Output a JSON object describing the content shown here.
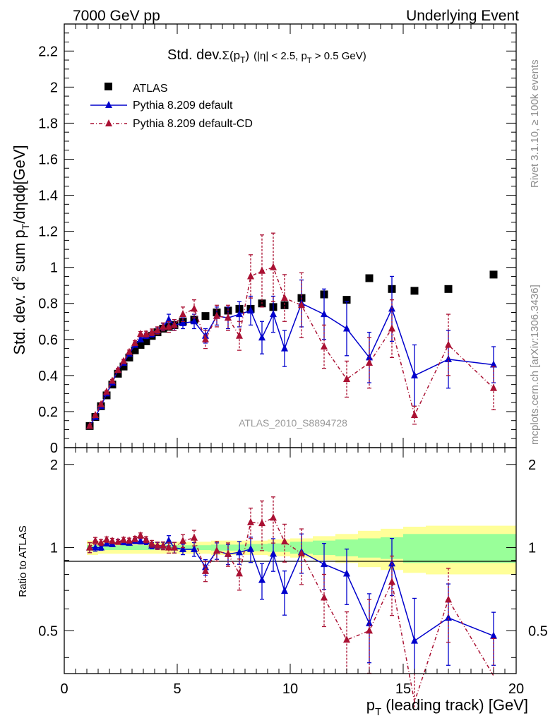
{
  "header": {
    "left": "7000 GeV pp",
    "right": "Underlying Event"
  },
  "side": {
    "rivet": "Rivet 3.1.10, ≥ 100k events",
    "mcplots": "mcplots.cern.ch [arXiv:1306.3436]"
  },
  "chart_data": {
    "type": "scatter",
    "title": {
      "prefix": "Std. dev.",
      "sigma": "Σ(p",
      "sigma_sub": "T",
      "sigma_close": ")",
      "cuts_a": "(|η| < 2.5, p",
      "cuts_sub": "T",
      "cuts_b": " > 0.5 GeV)"
    },
    "analysis_label": "ATLAS_2010_S8894728",
    "xlabel": {
      "main": "p",
      "sub": "T",
      "rest": " (leading track) [GeV]"
    },
    "ylabel": {
      "a": "Std. dev. d",
      "sup": "2",
      "b": " sum p",
      "sub": "T",
      "c": "/dηdϕ[GeV]"
    },
    "ratio_ylabel": "Ratio to ATLAS",
    "xlim": [
      0,
      20
    ],
    "ylim": [
      0,
      2.35
    ],
    "ratio_ylim": [
      0.35,
      2.3
    ],
    "xticks": [
      "0",
      "5",
      "10",
      "15",
      "20"
    ],
    "yticks": [
      "0",
      "0.2",
      "0.4",
      "0.6",
      "0.8",
      "1",
      "1.2",
      "1.4",
      "1.6",
      "1.8",
      "2",
      "2.2"
    ],
    "ratio_yticks": [
      "0.5",
      "1",
      "2"
    ],
    "legend": [
      {
        "name": "ATLAS",
        "color": "#000000"
      },
      {
        "name": "Pythia 8.209 default",
        "color": "#0000cc"
      },
      {
        "name": "Pythia 8.209 default-CD",
        "color": "#aa1133"
      }
    ],
    "x": [
      1.125,
      1.375,
      1.625,
      1.875,
      2.125,
      2.375,
      2.625,
      2.875,
      3.125,
      3.375,
      3.625,
      3.875,
      4.125,
      4.375,
      4.625,
      4.875,
      5.25,
      5.75,
      6.25,
      6.75,
      7.25,
      7.75,
      8.25,
      8.75,
      9.25,
      9.75,
      10.5,
      11.5,
      12.5,
      13.5,
      14.5,
      15.5,
      17.0,
      19.0
    ],
    "series": [
      {
        "name": "ATLAS",
        "values": [
          0.12,
          0.17,
          0.23,
          0.29,
          0.35,
          0.41,
          0.45,
          0.5,
          0.54,
          0.57,
          0.59,
          0.62,
          0.64,
          0.66,
          0.67,
          0.68,
          0.7,
          0.71,
          0.73,
          0.75,
          0.76,
          0.77,
          0.77,
          0.8,
          0.78,
          0.79,
          0.83,
          0.85,
          0.82,
          0.94,
          0.88,
          0.87,
          0.88,
          0.96
        ]
      },
      {
        "name": "Pythia 8.209 default",
        "values": [
          0.12,
          0.17,
          0.23,
          0.3,
          0.36,
          0.43,
          0.47,
          0.52,
          0.57,
          0.6,
          0.62,
          0.63,
          0.65,
          0.67,
          0.71,
          0.68,
          0.69,
          0.7,
          0.62,
          0.73,
          0.72,
          0.74,
          0.76,
          0.61,
          0.74,
          0.55,
          0.8,
          0.74,
          0.66,
          0.5,
          0.77,
          0.4,
          0.49,
          0.46
        ],
        "errors": [
          0.005,
          0.005,
          0.005,
          0.006,
          0.007,
          0.008,
          0.009,
          0.01,
          0.012,
          0.013,
          0.015,
          0.016,
          0.018,
          0.02,
          0.03,
          0.03,
          0.03,
          0.04,
          0.04,
          0.05,
          0.06,
          0.07,
          0.08,
          0.09,
          0.1,
          0.1,
          0.13,
          0.14,
          0.15,
          0.14,
          0.18,
          0.17,
          0.16,
          0.1
        ]
      },
      {
        "name": "Pythia 8.209 default-CD",
        "values": [
          0.12,
          0.18,
          0.24,
          0.31,
          0.37,
          0.43,
          0.48,
          0.53,
          0.58,
          0.63,
          0.63,
          0.64,
          0.65,
          0.67,
          0.67,
          0.68,
          0.74,
          0.77,
          0.6,
          0.73,
          0.72,
          0.62,
          0.95,
          0.98,
          1.0,
          0.83,
          0.79,
          0.56,
          0.38,
          0.47,
          0.66,
          0.18,
          0.57,
          0.33
        ],
        "errors": [
          0.005,
          0.005,
          0.006,
          0.007,
          0.008,
          0.009,
          0.01,
          0.011,
          0.013,
          0.014,
          0.016,
          0.018,
          0.02,
          0.022,
          0.03,
          0.03,
          0.04,
          0.05,
          0.05,
          0.06,
          0.07,
          0.08,
          0.12,
          0.2,
          0.19,
          0.13,
          0.18,
          0.12,
          0.1,
          0.14,
          0.16,
          0.05,
          0.17,
          0.12
        ]
      }
    ],
    "ratio_band": {
      "edges": [
        1.0,
        1.25,
        1.5,
        1.75,
        2.0,
        2.25,
        2.5,
        2.75,
        3.0,
        3.25,
        3.5,
        3.75,
        4.0,
        4.25,
        4.5,
        4.75,
        5.0,
        5.5,
        6.0,
        6.5,
        7.0,
        7.5,
        8.0,
        8.5,
        9.0,
        9.5,
        10.0,
        11.0,
        12.0,
        13.0,
        14.0,
        15.0,
        16.0,
        18.0,
        20.0
      ],
      "stat": [
        0.02,
        0.02,
        0.02,
        0.02,
        0.02,
        0.02,
        0.02,
        0.02,
        0.02,
        0.02,
        0.02,
        0.02,
        0.02,
        0.02,
        0.02,
        0.02,
        0.02,
        0.02,
        0.02,
        0.025,
        0.025,
        0.025,
        0.03,
        0.03,
        0.035,
        0.035,
        0.05,
        0.06,
        0.07,
        0.08,
        0.09,
        0.12,
        0.12,
        0.12
      ],
      "total": [
        0.06,
        0.06,
        0.05,
        0.05,
        0.05,
        0.05,
        0.05,
        0.05,
        0.05,
        0.05,
        0.05,
        0.05,
        0.05,
        0.05,
        0.05,
        0.05,
        0.05,
        0.05,
        0.05,
        0.06,
        0.06,
        0.06,
        0.06,
        0.06,
        0.07,
        0.07,
        0.08,
        0.1,
        0.12,
        0.15,
        0.17,
        0.19,
        0.2,
        0.2
      ]
    },
    "band_colors": {
      "total": "#ffff99",
      "stat": "#99ff99"
    }
  }
}
